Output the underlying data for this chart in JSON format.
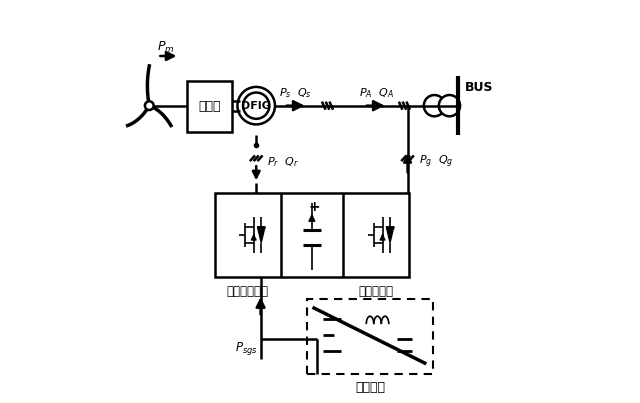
{
  "bg_color": "#ffffff",
  "line_color": "#000000",
  "fig_width": 6.4,
  "fig_height": 4.03,
  "dpi": 100,
  "labels": {
    "Pm": "$P_m$",
    "Ps_Qs": "$P_s$  $Q_s$",
    "PA_QA": "$P_A$  $Q_A$",
    "Pr_Qr": "$P_r$  $Q_r$",
    "Pg_Qg": "$P_g$  $Q_g$",
    "Psgs": "$P_{sgs}$",
    "BUS": "BUS",
    "gearbox": "齿轮筱",
    "DFIG": "DFIG",
    "rotor_conv": "转子侧变流器",
    "grid_conv": "网侧变流器",
    "storage": "储能装置"
  }
}
